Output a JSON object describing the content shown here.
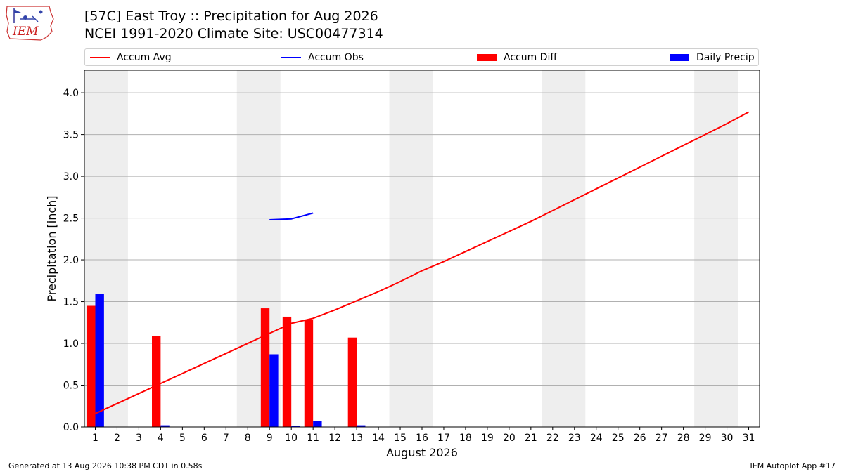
{
  "title_line1": "[57C] East Troy :: Precipitation for Aug 2026",
  "title_line2": "NCEI 1991-2020 Climate Site: USC00477314",
  "logo_text": "IEM",
  "legend": {
    "accum_avg": "Accum Avg",
    "accum_obs": "Accum Obs",
    "accum_diff": "Accum Diff",
    "daily_precip": "Daily Precip"
  },
  "footer_left": "Generated at 13 Aug 2026 10:38 PM CDT in 0.58s",
  "footer_right": "IEM Autoplot App #17",
  "colors": {
    "accum_avg": "#ff0000",
    "accum_obs": "#0000ff",
    "accum_diff": "#ff0000",
    "daily_precip": "#0000ff",
    "weekend_shade": "#eeeeee",
    "grid": "#b0b0b0"
  },
  "chart_data": {
    "type": "bar",
    "xlabel": "August 2026",
    "ylabel": "Precipitation [inch]",
    "xlim": [
      0.5,
      31.5
    ],
    "ylim": [
      0,
      4.27
    ],
    "yticks": [
      "0.0",
      "0.5",
      "1.0",
      "1.5",
      "2.0",
      "2.5",
      "3.0",
      "3.5",
      "4.0"
    ],
    "ytick_values": [
      0,
      0.5,
      1.0,
      1.5,
      2.0,
      2.5,
      3.0,
      3.5,
      4.0
    ],
    "categories": [
      "1",
      "2",
      "3",
      "4",
      "5",
      "6",
      "7",
      "8",
      "9",
      "10",
      "11",
      "12",
      "13",
      "14",
      "15",
      "16",
      "17",
      "18",
      "19",
      "20",
      "21",
      "22",
      "23",
      "24",
      "25",
      "26",
      "27",
      "28",
      "29",
      "30",
      "31"
    ],
    "grid": "horizontal",
    "legend_position": "top",
    "weekend_shading_days": [
      [
        1,
        2
      ],
      [
        8,
        9
      ],
      [
        15,
        16
      ],
      [
        22,
        23
      ],
      [
        29,
        30
      ]
    ],
    "series": [
      {
        "name": "Accum Avg",
        "type": "line",
        "x": [
          1,
          2,
          3,
          4,
          5,
          6,
          7,
          8,
          9,
          10,
          11,
          12,
          13,
          14,
          15,
          16,
          17,
          18,
          19,
          20,
          21,
          22,
          23,
          24,
          25,
          26,
          27,
          28,
          29,
          30,
          31
        ],
        "values": [
          0.16,
          0.28,
          0.4,
          0.52,
          0.64,
          0.76,
          0.88,
          1.0,
          1.12,
          1.24,
          1.3,
          1.4,
          1.51,
          1.62,
          1.74,
          1.87,
          1.98,
          2.1,
          2.22,
          2.34,
          2.46,
          2.59,
          2.72,
          2.85,
          2.98,
          3.11,
          3.24,
          3.37,
          3.5,
          3.63,
          3.77
        ]
      },
      {
        "name": "Accum Obs",
        "type": "line",
        "x": [
          9,
          10,
          11
        ],
        "values": [
          2.48,
          2.49,
          2.56
        ]
      },
      {
        "name": "Accum Diff",
        "type": "bar",
        "x": [
          1,
          4,
          9,
          10,
          11,
          13
        ],
        "values": [
          1.45,
          1.09,
          1.42,
          1.32,
          1.28,
          1.07
        ]
      },
      {
        "name": "Daily Precip",
        "type": "bar",
        "x": [
          1,
          4,
          9,
          10,
          11,
          13
        ],
        "values": [
          1.59,
          0.02,
          0.87,
          0.01,
          0.07,
          0.02
        ]
      }
    ]
  }
}
